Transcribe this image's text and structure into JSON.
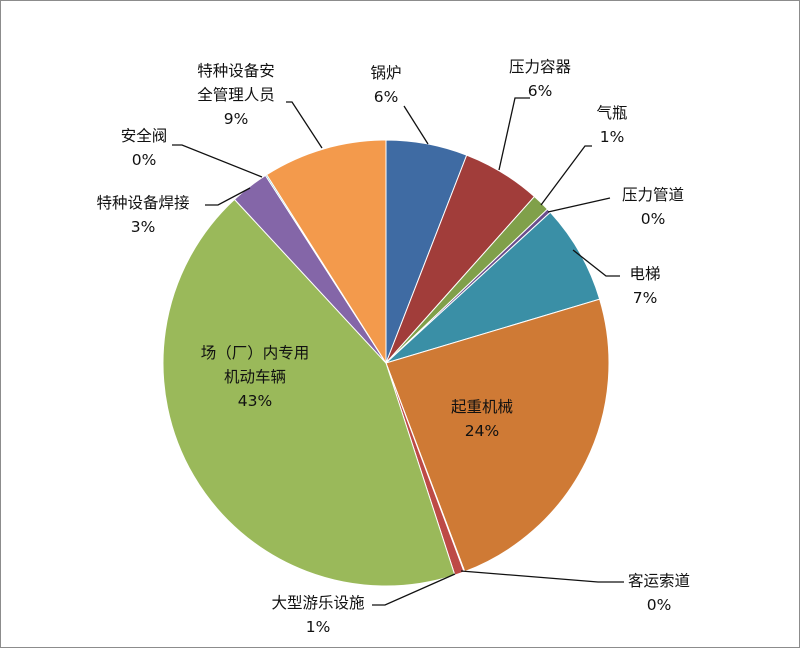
{
  "chart_data": {
    "type": "pie",
    "title": "",
    "slices": [
      {
        "name": "锅炉",
        "percent_label": "6%",
        "value": 5.9,
        "color": "#3f6ba3"
      },
      {
        "name": "压力容器",
        "percent_label": "6%",
        "value": 5.7,
        "color": "#a13d3a"
      },
      {
        "name": "气瓶",
        "percent_label": "1%",
        "value": 1.3,
        "color": "#80a04a"
      },
      {
        "name": "压力管道",
        "percent_label": "0%",
        "value": 0.3,
        "color": "#6a4d8c"
      },
      {
        "name": "电梯",
        "percent_label": "7%",
        "value": 7.2,
        "color": "#3a8fa6"
      },
      {
        "name": "起重机械",
        "percent_label": "24%",
        "value": 23.9,
        "color": "#cf7a35"
      },
      {
        "name": "客运索道",
        "percent_label": "0%",
        "value": 0.05,
        "color": "#496a96"
      },
      {
        "name": "大型游乐设施",
        "percent_label": "1%",
        "value": 0.7,
        "color": "#bd4a46"
      },
      {
        "name": "场（厂）内专用机动车辆",
        "percent_label": "43%",
        "value": 43.15,
        "color": "#9ab95a"
      },
      {
        "name": "特种设备焊接",
        "percent_label": "3%",
        "value": 2.8,
        "color": "#8466a8"
      },
      {
        "name": "安全阀",
        "percent_label": "0%",
        "value": 0.1,
        "color": "#3ea6bd"
      },
      {
        "name": "特种设备安全管理人员",
        "percent_label": "9%",
        "value": 9.0,
        "color": "#f39a4c"
      }
    ]
  }
}
